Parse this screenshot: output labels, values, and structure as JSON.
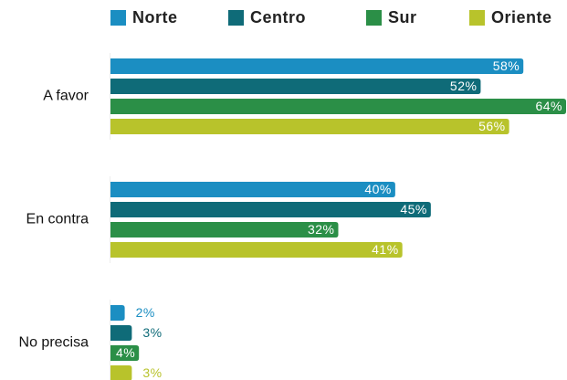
{
  "chart_data": {
    "type": "bar",
    "orientation": "horizontal",
    "categories": [
      "A favor",
      "En contra",
      "No precisa"
    ],
    "series": [
      {
        "name": "Norte",
        "color": "#1b8ec2",
        "values": [
          58,
          40,
          2
        ],
        "value_labels": [
          "58%",
          "40%",
          "2%"
        ]
      },
      {
        "name": "Centro",
        "color": "#0f6b78",
        "values": [
          52,
          45,
          3
        ],
        "value_labels": [
          "52%",
          "45%",
          "3%"
        ]
      },
      {
        "name": "Sur",
        "color": "#2b8f47",
        "values": [
          64,
          32,
          4
        ],
        "value_labels": [
          "64%",
          "32%",
          "4%"
        ]
      },
      {
        "name": "Oriente",
        "color": "#b8c32b",
        "values": [
          56,
          41,
          3
        ],
        "value_labels": [
          "56%",
          "41%",
          "3%"
        ]
      }
    ],
    "legend": "top"
  }
}
